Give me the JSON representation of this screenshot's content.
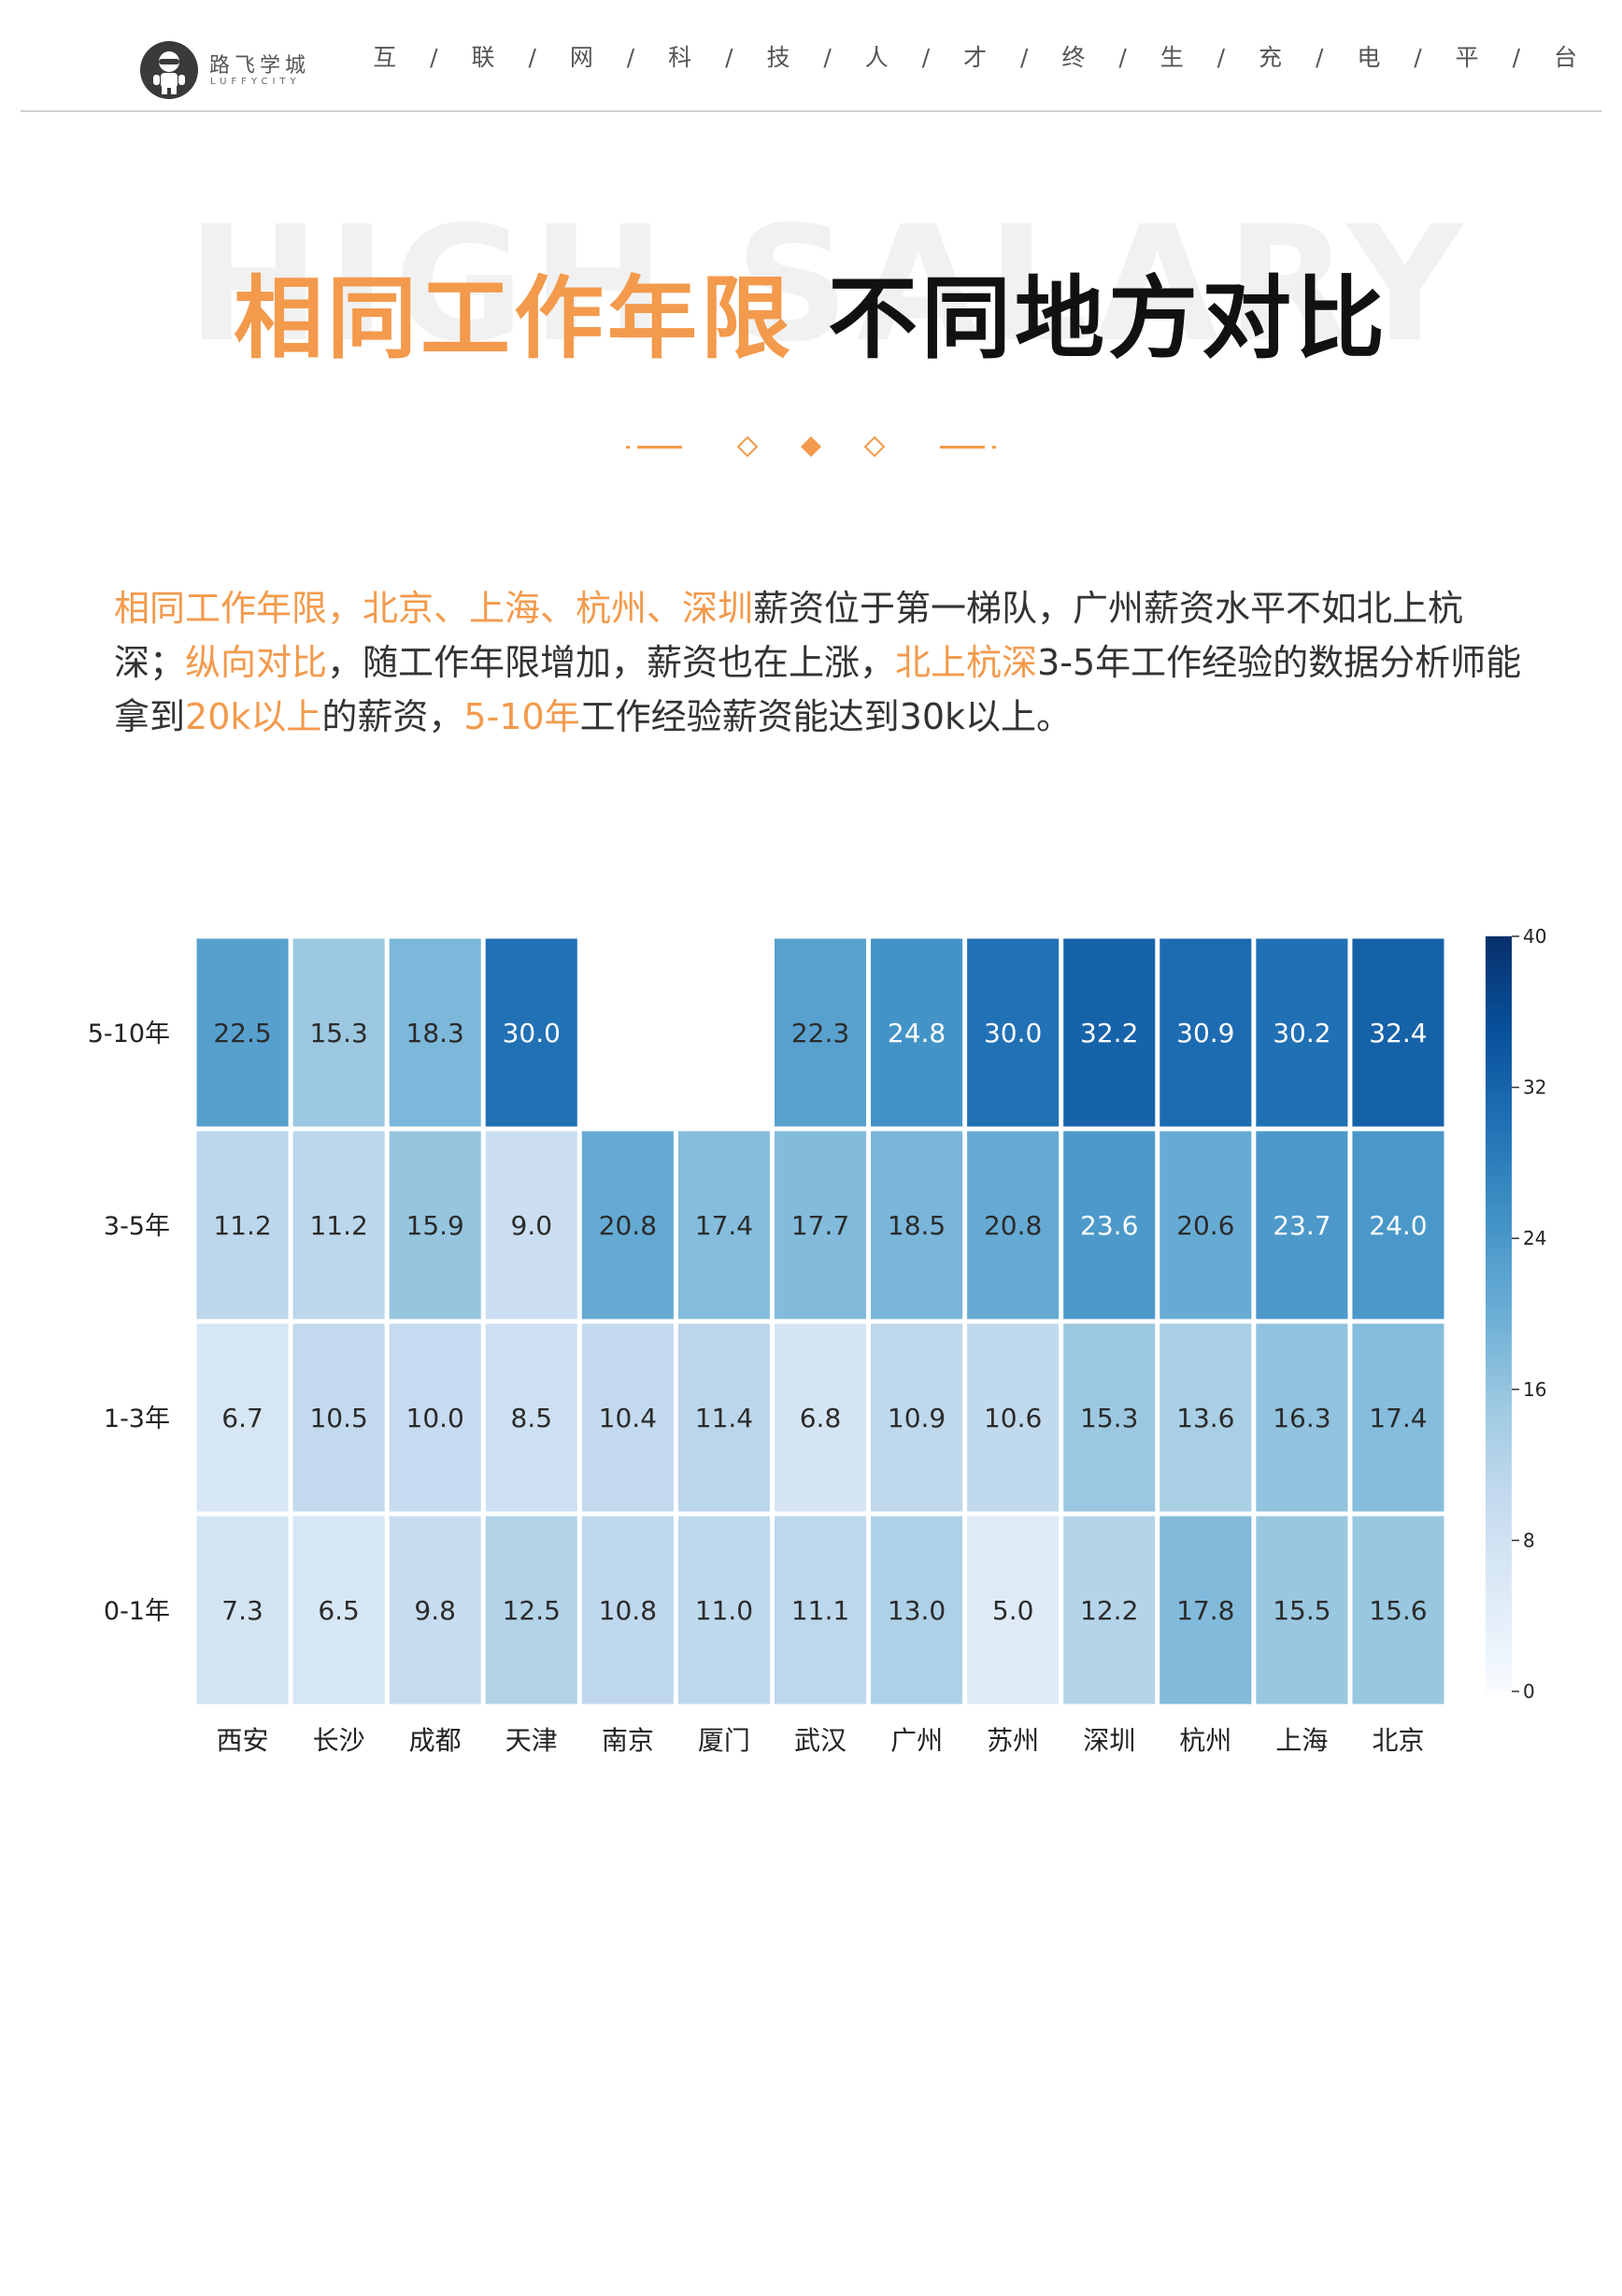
{
  "header": {
    "logo_cn": "路飞学城",
    "logo_en": "LUFFYCITY",
    "slogan": "互 / 联 / 网 / 科 / 技 / 人 / 才 / 终 / 生 / 充 / 电 / 平 / 台"
  },
  "title": {
    "watermark": "HIGH SALARY",
    "highlight": "相同工作年限",
    "rest": "不同地方对比"
  },
  "paragraph": [
    {
      "text": "相同工作年限，北京、上海、杭州、深圳",
      "hl": true
    },
    {
      "text": "薪资位于第一梯队，广州薪资水平不如北上杭深；",
      "hl": false
    },
    {
      "text": "纵向对比",
      "hl": true
    },
    {
      "text": "，随工作年限增加，薪资也在上涨，",
      "hl": false
    },
    {
      "text": "北上杭深",
      "hl": true
    },
    {
      "text": "3-5年工作经验的数据分析师能拿到",
      "hl": false
    },
    {
      "text": "20k以上",
      "hl": true
    },
    {
      "text": "的薪资，",
      "hl": false
    },
    {
      "text": "5-10年",
      "hl": true
    },
    {
      "text": "工作经验薪资能达到30k以上。",
      "hl": false
    }
  ],
  "colors": {
    "accent": "#f39a4c",
    "cmap": [
      "#f7fbff",
      "#deebf7",
      "#c6dbef",
      "#9ecae1",
      "#6baed6",
      "#4292c6",
      "#2171b5",
      "#08519c",
      "#08306b"
    ]
  },
  "chart_data": {
    "type": "heatmap",
    "x_categories": [
      "西安",
      "长沙",
      "成都",
      "天津",
      "南京",
      "厦门",
      "武汉",
      "广州",
      "苏州",
      "深圳",
      "杭州",
      "上海",
      "北京"
    ],
    "y_categories": [
      "5-10年",
      "3-5年",
      "1-3年",
      "0-1年"
    ],
    "values": [
      [
        22.5,
        15.3,
        18.3,
        30.0,
        null,
        null,
        22.3,
        24.8,
        30.0,
        32.2,
        30.9,
        30.2,
        32.4
      ],
      [
        11.2,
        11.2,
        15.9,
        9.0,
        20.8,
        17.4,
        17.7,
        18.5,
        20.8,
        23.6,
        20.6,
        23.7,
        24.0
      ],
      [
        6.7,
        10.5,
        10.0,
        8.5,
        10.4,
        11.4,
        6.8,
        10.9,
        10.6,
        15.3,
        13.6,
        16.3,
        17.4
      ],
      [
        7.3,
        6.5,
        9.8,
        12.5,
        10.8,
        11.0,
        11.1,
        13.0,
        5.0,
        12.2,
        17.8,
        15.5,
        15.6
      ]
    ],
    "vmin": 0,
    "vmax": 40,
    "colorbar_ticks": [
      0,
      8,
      16,
      24,
      32,
      40
    ],
    "colormap": "Blues",
    "missing": "blank"
  }
}
